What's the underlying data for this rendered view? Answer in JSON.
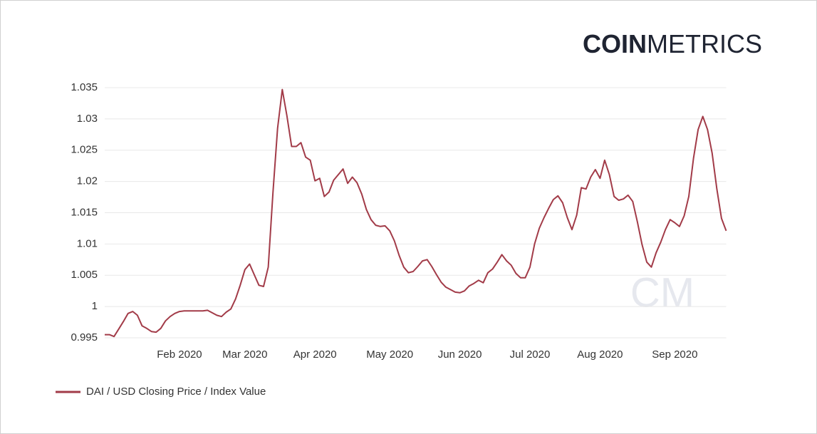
{
  "chart_data": {
    "type": "line",
    "logo": {
      "bold": "COIN",
      "light": "METRICS"
    },
    "watermark": "CM",
    "categories": [
      null,
      null,
      null,
      null,
      null,
      null,
      null,
      null,
      null,
      null,
      null,
      null,
      null,
      null,
      null,
      null,
      "Feb 2020",
      null,
      null,
      null,
      null,
      null,
      null,
      null,
      null,
      null,
      null,
      null,
      null,
      null,
      "Mar 2020",
      null,
      null,
      null,
      null,
      null,
      null,
      null,
      null,
      null,
      null,
      null,
      null,
      null,
      null,
      "Apr 2020",
      null,
      null,
      null,
      null,
      null,
      null,
      null,
      null,
      null,
      null,
      null,
      null,
      null,
      null,
      null,
      "May 2020",
      null,
      null,
      null,
      null,
      null,
      null,
      null,
      null,
      null,
      null,
      null,
      null,
      null,
      null,
      "Jun 2020",
      null,
      null,
      null,
      null,
      null,
      null,
      null,
      null,
      null,
      null,
      null,
      null,
      null,
      null,
      "Jul 2020",
      null,
      null,
      null,
      null,
      null,
      null,
      null,
      null,
      null,
      null,
      null,
      null,
      null,
      null,
      "Aug 2020",
      null,
      null,
      null,
      null,
      null,
      null,
      null,
      null,
      null,
      null,
      null,
      null,
      null,
      null,
      null,
      "Sep 2020",
      null,
      null,
      null,
      null,
      null,
      null,
      null,
      null,
      null,
      null,
      null
    ],
    "series": [
      {
        "name": "DAI / USD Closing Price / Index Value",
        "color": "#a23b48",
        "values": [
          0.9955,
          0.9955,
          0.9952,
          0.9964,
          0.9976,
          0.9989,
          0.9992,
          0.9986,
          0.9969,
          0.9965,
          0.996,
          0.9959,
          0.9965,
          0.9977,
          0.9984,
          0.9989,
          0.9992,
          0.9993,
          0.9993,
          0.9993,
          0.9993,
          0.9993,
          0.9994,
          0.999,
          0.9986,
          0.9984,
          0.9991,
          0.9996,
          1.0012,
          1.0034,
          1.0059,
          1.0068,
          1.0051,
          1.0034,
          1.0032,
          1.0063,
          1.0182,
          1.0285,
          1.0347,
          1.0305,
          1.0256,
          1.0256,
          1.0262,
          1.0239,
          1.0234,
          1.0201,
          1.0205,
          1.0176,
          1.0183,
          1.0202,
          1.0211,
          1.022,
          1.0197,
          1.0207,
          1.0198,
          1.018,
          1.0155,
          1.0139,
          1.013,
          1.0128,
          1.0129,
          1.0121,
          1.0105,
          1.0082,
          1.0063,
          1.0054,
          1.0056,
          1.0064,
          1.0073,
          1.0075,
          1.0064,
          1.0051,
          1.0039,
          1.0031,
          1.0027,
          1.0023,
          1.0022,
          1.0025,
          1.0033,
          1.0037,
          1.0042,
          1.0038,
          1.0054,
          1.006,
          1.0071,
          1.0083,
          1.0073,
          1.0066,
          1.0053,
          1.0046,
          1.0046,
          1.0063,
          1.01,
          1.0125,
          1.0142,
          1.0157,
          1.0171,
          1.0177,
          1.0166,
          1.0142,
          1.0123,
          1.0146,
          1.019,
          1.0188,
          1.0207,
          1.0219,
          1.0205,
          1.0234,
          1.0211,
          1.0176,
          1.017,
          1.0172,
          1.0178,
          1.0168,
          1.0135,
          1.0099,
          1.0071,
          1.0063,
          1.0086,
          1.0103,
          1.0123,
          1.0139,
          1.0134,
          1.0128,
          1.0145,
          1.0176,
          1.0237,
          1.0283,
          1.0304,
          1.0283,
          1.0245,
          1.0188,
          1.0141,
          1.0121
        ]
      }
    ],
    "ylim": [
      0.995,
      1.035
    ],
    "yticks": [
      0.995,
      1,
      1.005,
      1.01,
      1.015,
      1.02,
      1.025,
      1.03,
      1.035
    ],
    "grid": true
  }
}
